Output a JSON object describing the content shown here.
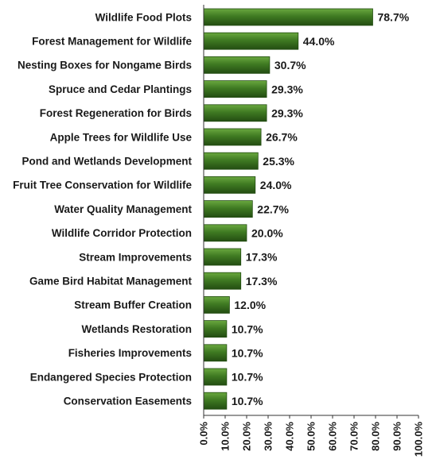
{
  "chart_data": {
    "type": "bar",
    "orientation": "horizontal",
    "categories": [
      "Wildlife Food Plots",
      "Forest Management for Wildlife",
      "Nesting Boxes for Nongame Birds",
      "Spruce and Cedar Plantings",
      "Forest Regeneration for Birds",
      "Apple Trees for Wildlife Use",
      "Pond and Wetlands Development",
      "Fruit Tree Conservation for Wildlife",
      "Water Quality Management",
      "Wildlife Corridor Protection",
      "Stream Improvements",
      "Game Bird Habitat Management",
      "Stream Buffer Creation",
      "Wetlands Restoration",
      "Fisheries Improvements",
      "Endangered Species Protection",
      "Conservation Easements"
    ],
    "values": [
      78.7,
      44.0,
      30.7,
      29.3,
      29.3,
      26.7,
      25.3,
      24.0,
      22.7,
      20.0,
      17.3,
      17.3,
      12.0,
      10.7,
      10.7,
      10.7,
      10.7
    ],
    "value_labels": [
      "78.7%",
      "44.0%",
      "30.7%",
      "29.3%",
      "29.3%",
      "26.7%",
      "25.3%",
      "24.0%",
      "22.7%",
      "20.0%",
      "17.3%",
      "17.3%",
      "12.0%",
      "10.7%",
      "10.7%",
      "10.7%",
      "10.7%"
    ],
    "xticks": [
      "0.0%",
      "10.0%",
      "20.0%",
      "30.0%",
      "40.0%",
      "50.0%",
      "60.0%",
      "70.0%",
      "80.0%",
      "90.0%",
      "100.0%"
    ],
    "xlim": [
      0,
      100
    ],
    "title": "",
    "xlabel": "",
    "ylabel": "",
    "grid": false,
    "legend": "none",
    "colors": {
      "bar": "#3f7a22",
      "bar_light": "#6aa83f",
      "bar_dark": "#234d12",
      "text": "#1a1a1a"
    }
  }
}
